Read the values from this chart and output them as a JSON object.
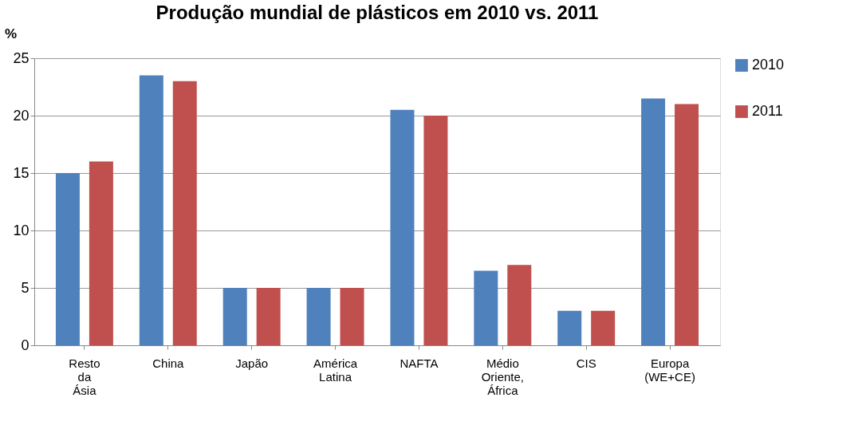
{
  "chart_data": {
    "type": "bar",
    "title": "Produção mundial de plásticos em 2010 vs. 2011",
    "ylabel": "%",
    "categories": [
      "Resto da Ásia",
      "China",
      "Japão",
      "América Latina",
      "NAFTA",
      "Médio Oriente, África",
      "CIS",
      "Europa (WE+CE)"
    ],
    "series": [
      {
        "name": "2010",
        "color": "#4f81bd",
        "values": [
          15,
          23.5,
          5,
          5,
          20.5,
          6.5,
          3,
          21.5
        ]
      },
      {
        "name": "2011",
        "color": "#c0504d",
        "values": [
          16,
          23,
          5,
          5,
          20,
          7,
          3,
          21
        ]
      }
    ],
    "ylim": [
      0,
      25
    ],
    "yticks": [
      0,
      5,
      10,
      15,
      20,
      25
    ],
    "grid": "y",
    "legend": "right"
  }
}
